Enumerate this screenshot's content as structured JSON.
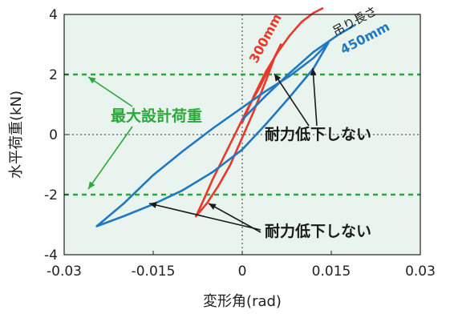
{
  "chart_data": {
    "type": "line",
    "xlabel": "変形角(rad)",
    "ylabel": "水平荷重(kN)",
    "xlim": [
      -0.03,
      0.03
    ],
    "ylim": [
      -4,
      4
    ],
    "x_ticks": [
      -0.03,
      -0.015,
      0,
      0.015,
      0.03
    ],
    "x_tick_labels": [
      "-0.03",
      "-0.015",
      "0",
      "0.015",
      "0.03"
    ],
    "y_ticks": [
      -4,
      -2,
      0,
      2,
      4
    ],
    "y_tick_labels": [
      "-4",
      "-2",
      "0",
      "2",
      "4"
    ],
    "grid": false,
    "colors": {
      "background": "#eaf4ee",
      "series_300": "#e8392a",
      "series_450": "#1f78c1",
      "design_load": "#2aa83a",
      "annotation": "#1a1a1a"
    },
    "design_load_lines": [
      2,
      -2
    ],
    "series": [
      {
        "name": "300mm",
        "color": "#e8392a",
        "x": [
          -0.0078,
          -0.006,
          -0.004,
          -0.002,
          0,
          0.002,
          0.004,
          0.0055,
          0.0065,
          0.005,
          0.003,
          0.001,
          -0.001,
          -0.003,
          -0.005,
          -0.0068,
          -0.0078
        ],
        "y": [
          -2.72,
          -2.3,
          -1.7,
          -1.0,
          -0.1,
          0.8,
          1.8,
          2.6,
          3.0,
          2.4,
          1.6,
          0.9,
          0.1,
          -0.7,
          -1.5,
          -2.3,
          -2.72
        ]
      },
      {
        "name": "300mm-envelope",
        "color": "#e8392a",
        "x": [
          0,
          0.002,
          0.004,
          0.006,
          0.008,
          0.01,
          0.012,
          0.0135
        ],
        "y": [
          0.4,
          1.3,
          2.1,
          2.75,
          3.3,
          3.75,
          4.05,
          4.2
        ]
      },
      {
        "name": "450mm",
        "color": "#1f78c1",
        "x": [
          -0.0245,
          -0.02,
          -0.015,
          -0.01,
          -0.005,
          0,
          0.004,
          0.008,
          0.012,
          0.0145,
          0.012,
          0.008,
          0.004,
          0,
          -0.005,
          -0.01,
          -0.015,
          -0.02,
          -0.0245
        ],
        "y": [
          -3.05,
          -2.72,
          -2.32,
          -1.85,
          -1.25,
          -0.5,
          0.35,
          1.25,
          2.2,
          3.05,
          2.55,
          1.95,
          1.45,
          0.9,
          0.2,
          -0.55,
          -1.35,
          -2.3,
          -3.05
        ]
      },
      {
        "name": "450mm-envelope",
        "color": "#1f78c1",
        "x": [
          0,
          0.004,
          0.008,
          0.012,
          0.016,
          0.019
        ],
        "y": [
          0.5,
          1.3,
          2.05,
          2.75,
          3.3,
          3.65
        ]
      }
    ],
    "annotations": [
      {
        "id": "design-load",
        "text": "最大設計荷重",
        "color": "#2aa83a"
      },
      {
        "id": "no-degradation-upper",
        "text": "耐力低下しない",
        "color": "#1a1a1a"
      },
      {
        "id": "no-degradation-lower",
        "text": "耐力低下しない",
        "color": "#1a1a1a"
      }
    ],
    "series_labels": [
      {
        "id": "label-300",
        "text": "300mm",
        "color": "#e8392a"
      },
      {
        "id": "label-hanging-length",
        "text": "吊り長さ",
        "color": "#1a1a1a"
      },
      {
        "id": "label-450",
        "text": "450mm",
        "color": "#1f78c1"
      }
    ]
  }
}
